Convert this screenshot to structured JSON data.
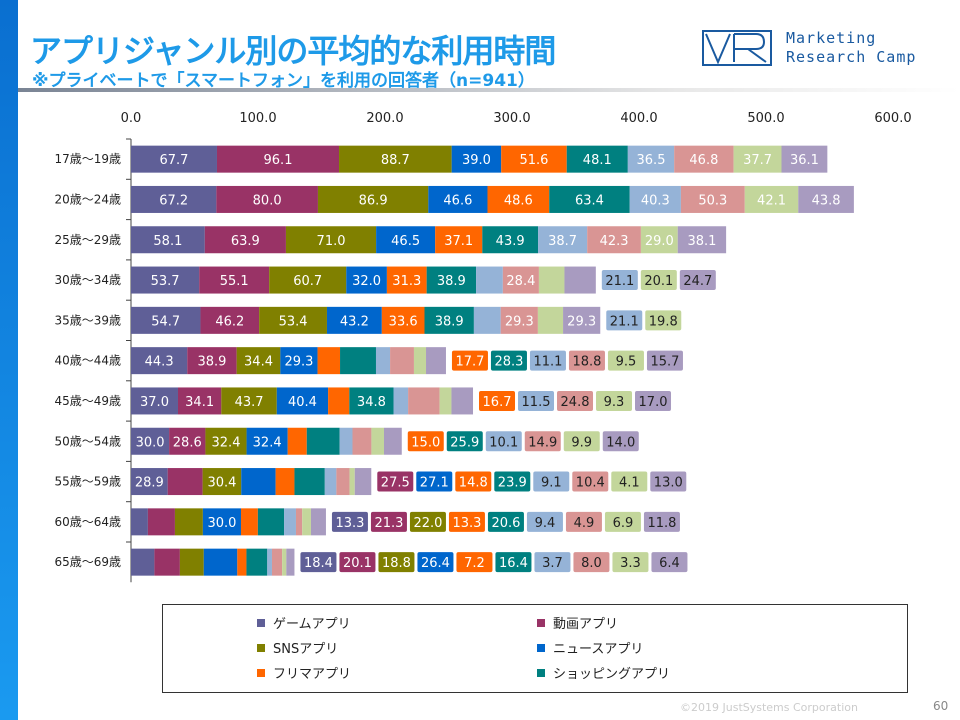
{
  "header": {
    "title": "アプリジャンル別の平均的な利用時間",
    "subtitle": "※プライベートで「スマートフォン」を利用の回答者（n=941）",
    "logo_text_1": "Marketing",
    "logo_text_2": "Research Camp",
    "logo_mark": "MRC"
  },
  "footer": {
    "copyright": "©2019 JustSystems Corporation",
    "page": "60"
  },
  "chart_data": {
    "type": "bar",
    "orientation": "horizontal",
    "stacked": true,
    "xlim": [
      0,
      600
    ],
    "xticks": [
      "0.0",
      "100.0",
      "200.0",
      "300.0",
      "400.0",
      "500.0",
      "600.0"
    ],
    "categories": [
      "17歳～19歳",
      "20歳～24歳",
      "25歳～29歳",
      "30歳～34歳",
      "35歳～39歳",
      "40歳～44歳",
      "45歳～49歳",
      "50歳～54歳",
      "55歳～59歳",
      "60歳～64歳",
      "65歳～69歳"
    ],
    "legend_position": "bottom",
    "series": [
      {
        "name": "ゲームアプリ",
        "color": "#5f5f97",
        "values": [
          67.7,
          67.2,
          58.1,
          53.7,
          54.7,
          44.3,
          37.0,
          30.0,
          28.9,
          13.3,
          18.4
        ]
      },
      {
        "name": "動画アプリ",
        "color": "#993366",
        "values": [
          96.1,
          80.0,
          63.9,
          55.1,
          46.2,
          38.9,
          34.1,
          28.6,
          27.5,
          21.3,
          20.1
        ]
      },
      {
        "name": "SNSアプリ",
        "color": "#808000",
        "values": [
          88.7,
          86.9,
          71.0,
          60.7,
          53.4,
          34.4,
          43.7,
          32.4,
          30.4,
          22.0,
          18.8
        ]
      },
      {
        "name": "ニュースアプリ",
        "color": "#0066cc",
        "values": [
          39.0,
          46.6,
          46.5,
          32.0,
          43.2,
          29.3,
          40.4,
          32.4,
          27.1,
          30.0,
          26.4
        ]
      },
      {
        "name": "フリマアプリ",
        "color": "#ff6600",
        "values": [
          51.6,
          48.6,
          37.1,
          31.3,
          33.6,
          17.7,
          16.7,
          15.0,
          14.8,
          13.3,
          7.2
        ]
      },
      {
        "name": "ショッピングアプリ",
        "color": "#008080",
        "values": [
          48.1,
          63.4,
          43.9,
          38.9,
          38.9,
          28.3,
          34.8,
          25.9,
          23.9,
          20.6,
          16.4
        ]
      },
      {
        "color": "#95b3d7",
        "values": [
          36.5,
          40.3,
          38.7,
          21.1,
          21.1,
          11.1,
          11.5,
          10.1,
          9.1,
          9.4,
          3.7
        ]
      },
      {
        "color": "#d99594",
        "values": [
          46.8,
          50.3,
          42.3,
          28.4,
          29.3,
          18.8,
          24.8,
          14.9,
          10.4,
          4.9,
          8.0
        ]
      },
      {
        "color": "#c3d69b",
        "values": [
          37.7,
          42.1,
          29.0,
          20.1,
          19.8,
          9.5,
          9.3,
          9.9,
          4.1,
          6.9,
          3.3
        ]
      },
      {
        "color": "#a89bc0",
        "values": [
          36.1,
          43.8,
          38.1,
          24.7,
          29.3,
          15.7,
          17.0,
          14.0,
          13.0,
          11.8,
          6.4
        ]
      }
    ]
  }
}
